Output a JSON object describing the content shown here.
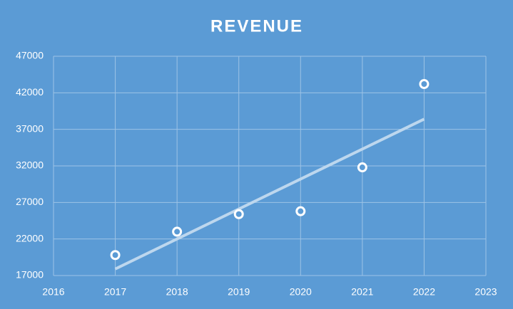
{
  "chart_data": {
    "type": "scatter",
    "title": "REVENUE",
    "series": [
      {
        "x": [
          2017,
          2018,
          2019,
          2020,
          2021,
          2022
        ],
        "values": [
          19800,
          23000,
          25400,
          25800,
          31800,
          43200
        ],
        "color": "#ffffff"
      }
    ],
    "trendline": {
      "x": [
        2017,
        2022
      ],
      "values": [
        17900,
        38400
      ],
      "color": "#bdd7ee"
    },
    "xlim": [
      2016,
      2023
    ],
    "xticks": [
      2016,
      2017,
      2018,
      2019,
      2020,
      2021,
      2022,
      2023
    ],
    "ylim": [
      17000,
      47000
    ],
    "yticks": [
      17000,
      22000,
      27000,
      32000,
      37000,
      42000,
      47000
    ],
    "grid": true
  }
}
